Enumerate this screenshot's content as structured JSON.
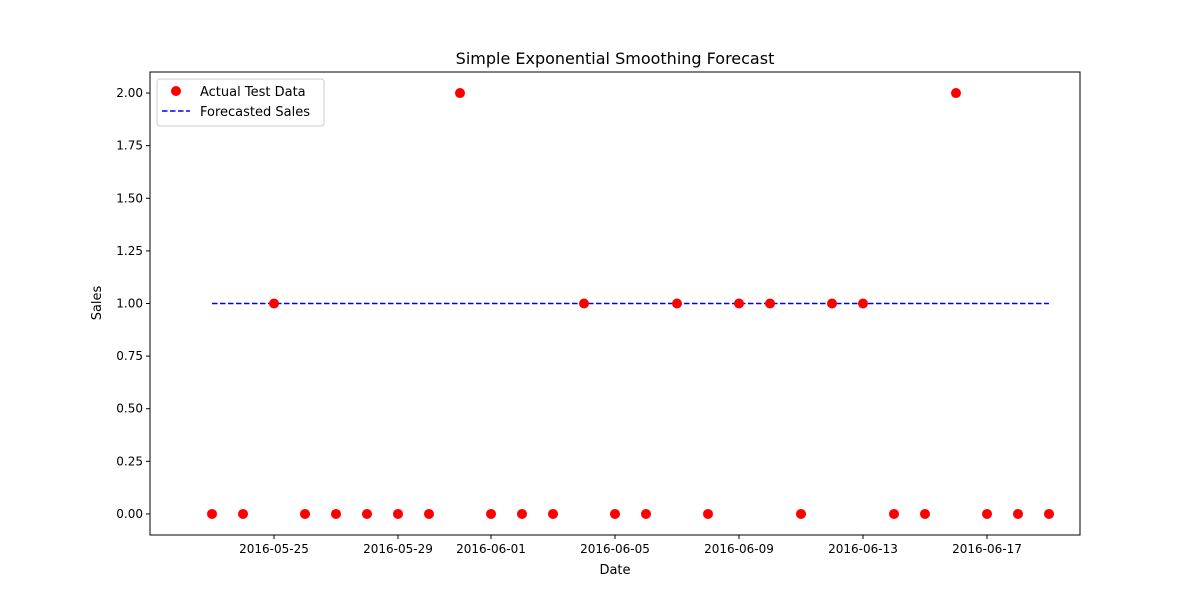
{
  "chart_data": {
    "type": "scatter",
    "title": "Simple Exponential Smoothing Forecast",
    "xlabel": "Date",
    "ylabel": "Sales",
    "xlim": [
      "2016-05-21",
      "2016-06-20"
    ],
    "ylim": [
      -0.1,
      2.1
    ],
    "x_ticks": [
      "2016-05-25",
      "2016-05-29",
      "2016-06-01",
      "2016-06-05",
      "2016-06-09",
      "2016-06-13",
      "2016-06-17"
    ],
    "y_ticks": [
      "0.00",
      "0.25",
      "0.50",
      "0.75",
      "1.00",
      "1.25",
      "1.50",
      "1.75",
      "2.00"
    ],
    "grid": false,
    "legend_position": "top-left",
    "series": [
      {
        "name": "Actual Test Data",
        "kind": "scatter",
        "color": "#ff0000",
        "x": [
          "2016-05-23",
          "2016-05-24",
          "2016-05-25",
          "2016-05-26",
          "2016-05-27",
          "2016-05-28",
          "2016-05-29",
          "2016-05-30",
          "2016-05-31",
          "2016-06-01",
          "2016-06-02",
          "2016-06-03",
          "2016-06-04",
          "2016-06-05",
          "2016-06-06",
          "2016-06-07",
          "2016-06-08",
          "2016-06-09",
          "2016-06-10",
          "2016-06-11",
          "2016-06-12",
          "2016-06-13",
          "2016-06-14",
          "2016-06-15",
          "2016-06-16",
          "2016-06-17",
          "2016-06-18",
          "2016-06-19"
        ],
        "y": [
          0,
          0,
          1,
          0,
          0,
          0,
          0,
          0,
          2,
          0,
          0,
          0,
          1,
          0,
          0,
          1,
          0,
          1,
          1,
          0,
          1,
          1,
          0,
          0,
          2,
          0,
          0,
          0
        ]
      },
      {
        "name": "Forecasted Sales",
        "kind": "dashed-line",
        "color": "#0000ff",
        "x": [
          "2016-05-23",
          "2016-06-19"
        ],
        "y": [
          1.0,
          1.0
        ]
      }
    ]
  }
}
